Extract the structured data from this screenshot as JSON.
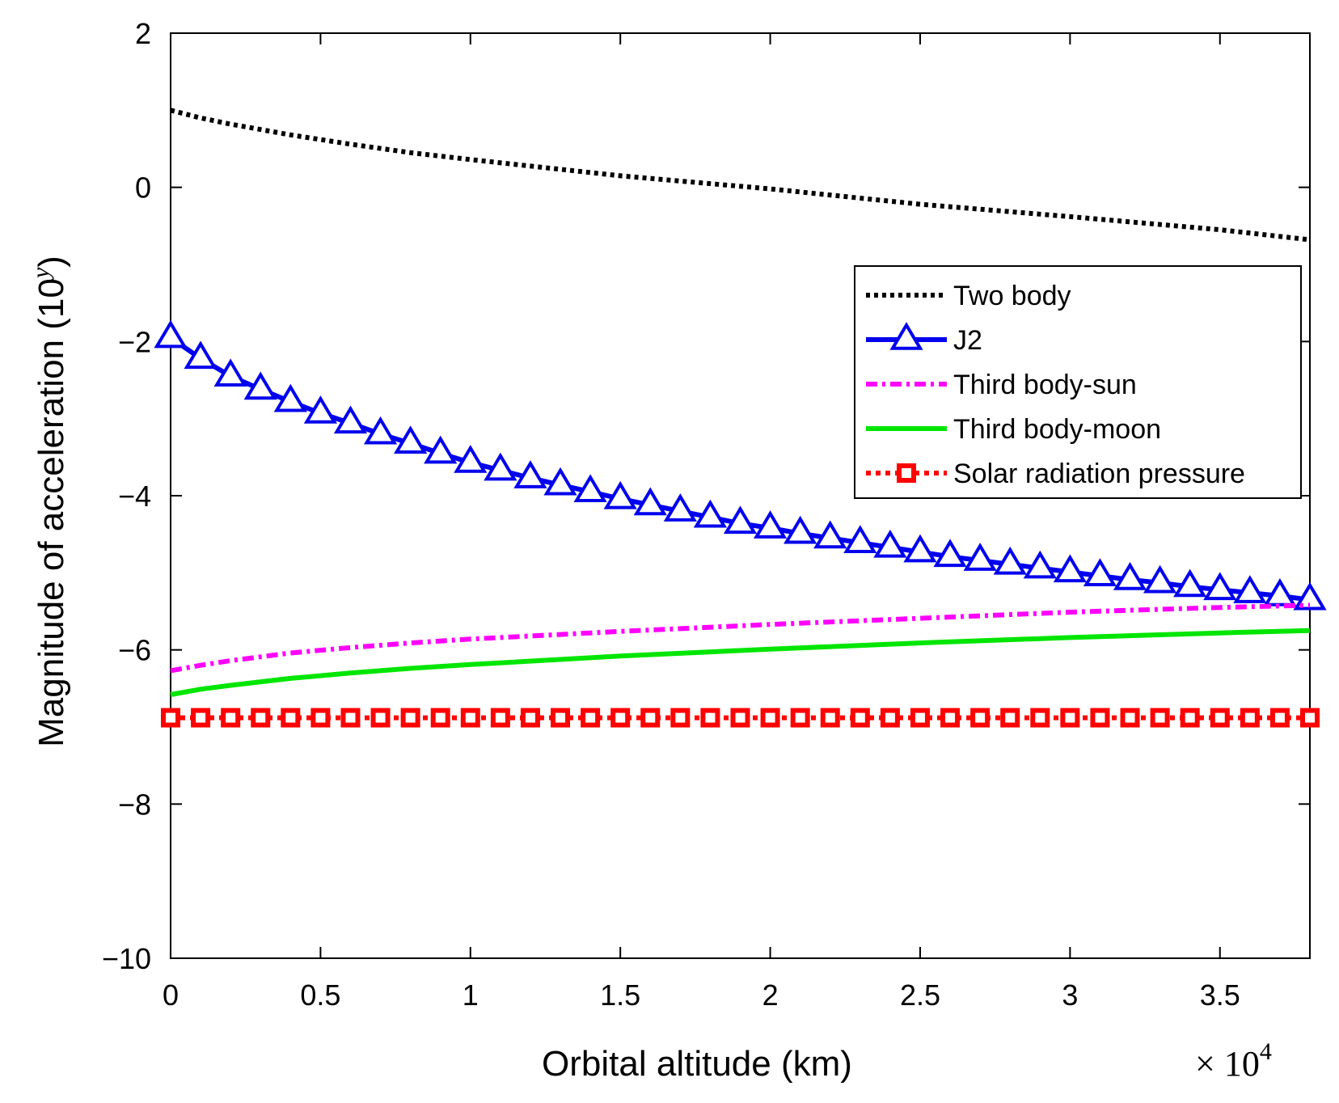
{
  "chart_data": {
    "type": "line",
    "title": "",
    "xlabel": "Orbital altitude (km)",
    "ylabel_main": "Magnitude of acceleration (10",
    "ylabel_sup": "y",
    "ylabel_close": ")",
    "x_multiplier_base": "× 10",
    "x_multiplier_exp": "4",
    "xlim": [
      0,
      3.8
    ],
    "ylim": [
      -10,
      2
    ],
    "xticks": [
      0,
      0.5,
      1,
      1.5,
      2,
      2.5,
      3,
      3.5
    ],
    "xtick_labels": [
      "0",
      "0.5",
      "1",
      "1.5",
      "2",
      "2.5",
      "3",
      "3.5"
    ],
    "yticks": [
      -10,
      -8,
      -6,
      -4,
      -2,
      0,
      2
    ],
    "ytick_labels": [
      "−10",
      "−8",
      "−6",
      "−4",
      "−2",
      "0",
      "2"
    ],
    "legend_position": "right",
    "series": [
      {
        "name": "Two body",
        "color": "#000000",
        "style": "dotted",
        "marker": "none",
        "x": [
          0,
          0.1,
          0.2,
          0.4,
          0.6,
          0.8,
          1.0,
          1.5,
          2.0,
          2.5,
          3.0,
          3.5,
          3.8
        ],
        "y": [
          1.0,
          0.9,
          0.82,
          0.68,
          0.56,
          0.45,
          0.36,
          0.15,
          -0.02,
          -0.22,
          -0.38,
          -0.55,
          -0.68
        ]
      },
      {
        "name": "J2",
        "color": "#0000ee",
        "style": "solid",
        "marker": "triangle",
        "x": [
          0,
          0.1,
          0.2,
          0.3,
          0.4,
          0.5,
          0.6,
          0.7,
          0.8,
          0.9,
          1.0,
          1.1,
          1.2,
          1.3,
          1.4,
          1.5,
          1.6,
          1.7,
          1.8,
          1.9,
          2.0,
          2.1,
          2.2,
          2.3,
          2.4,
          2.5,
          2.6,
          2.7,
          2.8,
          2.9,
          3.0,
          3.1,
          3.2,
          3.3,
          3.4,
          3.5,
          3.6,
          3.7,
          3.8
        ],
        "y": [
          -1.95,
          -2.22,
          -2.45,
          -2.62,
          -2.78,
          -2.93,
          -3.06,
          -3.2,
          -3.32,
          -3.45,
          -3.57,
          -3.67,
          -3.77,
          -3.86,
          -3.95,
          -4.04,
          -4.12,
          -4.2,
          -4.28,
          -4.36,
          -4.42,
          -4.49,
          -4.55,
          -4.61,
          -4.67,
          -4.73,
          -4.79,
          -4.84,
          -4.89,
          -4.94,
          -4.99,
          -5.04,
          -5.09,
          -5.13,
          -5.18,
          -5.22,
          -5.26,
          -5.3,
          -5.35
        ]
      },
      {
        "name": "Third body-sun",
        "color": "#ff00ff",
        "style": "dashdot",
        "marker": "none",
        "x": [
          0,
          0.1,
          0.2,
          0.4,
          0.6,
          0.8,
          1.0,
          1.5,
          2.0,
          2.5,
          3.0,
          3.5,
          3.8
        ],
        "y": [
          -6.27,
          -6.2,
          -6.14,
          -6.04,
          -5.97,
          -5.91,
          -5.86,
          -5.76,
          -5.67,
          -5.59,
          -5.51,
          -5.45,
          -5.42
        ]
      },
      {
        "name": "Third body-moon",
        "color": "#00e600",
        "style": "solid",
        "marker": "none",
        "x": [
          0,
          0.1,
          0.2,
          0.4,
          0.6,
          0.8,
          1.0,
          1.5,
          2.0,
          2.5,
          3.0,
          3.5,
          3.8
        ],
        "y": [
          -6.58,
          -6.51,
          -6.46,
          -6.37,
          -6.3,
          -6.24,
          -6.19,
          -6.08,
          -5.99,
          -5.91,
          -5.84,
          -5.78,
          -5.75
        ]
      },
      {
        "name": "Solar radiation pressure",
        "color": "#ff0000",
        "style": "dotted",
        "marker": "square",
        "x": [
          0,
          0.1,
          0.2,
          0.3,
          0.4,
          0.5,
          0.6,
          0.7,
          0.8,
          0.9,
          1.0,
          1.1,
          1.2,
          1.3,
          1.4,
          1.5,
          1.6,
          1.7,
          1.8,
          1.9,
          2.0,
          2.1,
          2.2,
          2.3,
          2.4,
          2.5,
          2.6,
          2.7,
          2.8,
          2.9,
          3.0,
          3.1,
          3.2,
          3.3,
          3.4,
          3.5,
          3.6,
          3.7,
          3.8
        ],
        "y": [
          -6.88,
          -6.88,
          -6.88,
          -6.88,
          -6.88,
          -6.88,
          -6.88,
          -6.88,
          -6.88,
          -6.88,
          -6.88,
          -6.88,
          -6.88,
          -6.88,
          -6.88,
          -6.88,
          -6.88,
          -6.88,
          -6.88,
          -6.88,
          -6.88,
          -6.88,
          -6.88,
          -6.88,
          -6.88,
          -6.88,
          -6.88,
          -6.88,
          -6.88,
          -6.88,
          -6.88,
          -6.88,
          -6.88,
          -6.88,
          -6.88,
          -6.88,
          -6.88,
          -6.88,
          -6.88
        ]
      }
    ]
  }
}
